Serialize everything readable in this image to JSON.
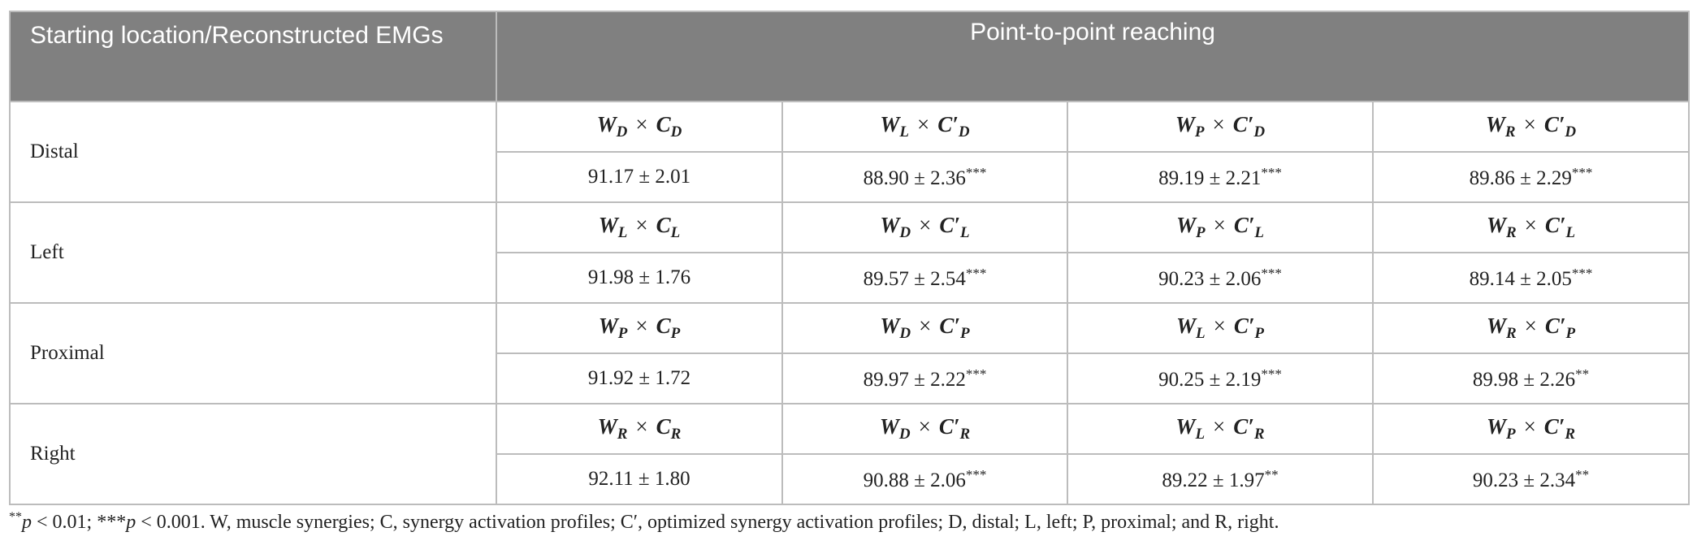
{
  "table": {
    "header": [
      "Starting location/Reconstructed EMGs",
      "Point-to-point reaching"
    ],
    "groups": [
      {
        "label": "Distal",
        "formulas": [
          {
            "w": "W",
            "w_sub": "D",
            "op": "×",
            "c": "C",
            "c_sub": "D"
          },
          {
            "w": "W",
            "w_sub": "L",
            "op": "×",
            "c": "C′",
            "c_sub": "D"
          },
          {
            "w": "W",
            "w_sub": "P",
            "op": "×",
            "c": "C′",
            "c_sub": "D"
          },
          {
            "w": "W",
            "w_sub": "R",
            "op": "×",
            "c": "C′",
            "c_sub": "D"
          }
        ],
        "values": [
          {
            "text": "91.17 ± 2.01",
            "sig": null
          },
          {
            "text": "88.90 ± 2.36",
            "sig": "***"
          },
          {
            "text": "89.19 ± 2.21",
            "sig": "***"
          },
          {
            "text": "89.86 ± 2.29",
            "sig": "***"
          }
        ]
      },
      {
        "label": "Left",
        "formulas": [
          {
            "w": "W",
            "w_sub": "L",
            "op": "×",
            "c": "C",
            "c_sub": "L"
          },
          {
            "w": "W",
            "w_sub": "D",
            "op": "×",
            "c": "C′",
            "c_sub": "L"
          },
          {
            "w": "W",
            "w_sub": "P",
            "op": "×",
            "c": "C′",
            "c_sub": "L"
          },
          {
            "w": "W",
            "w_sub": "R",
            "op": "×",
            "c": "C′",
            "c_sub": "L"
          }
        ],
        "values": [
          {
            "text": "91.98 ± 1.76",
            "sig": null
          },
          {
            "text": "89.57 ± 2.54",
            "sig": "***"
          },
          {
            "text": "90.23 ± 2.06",
            "sig": "***"
          },
          {
            "text": "89.14 ± 2.05",
            "sig": "***"
          }
        ]
      },
      {
        "label": "Proximal",
        "formulas": [
          {
            "w": "W",
            "w_sub": "P",
            "op": "×",
            "c": "C",
            "c_sub": "P"
          },
          {
            "w": "W",
            "w_sub": "D",
            "op": "×",
            "c": "C′",
            "c_sub": "P"
          },
          {
            "w": "W",
            "w_sub": "L",
            "op": "×",
            "c": "C′",
            "c_sub": "P"
          },
          {
            "w": "W",
            "w_sub": "R",
            "op": "×",
            "c": "C′",
            "c_sub": "P"
          }
        ],
        "values": [
          {
            "text": "91.92 ± 1.72",
            "sig": null
          },
          {
            "text": "89.97 ± 2.22",
            "sig": "***"
          },
          {
            "text": "90.25 ± 2.19",
            "sig": "***"
          },
          {
            "text": "89.98 ± 2.26",
            "sig": "**"
          }
        ]
      },
      {
        "label": "Right",
        "formulas": [
          {
            "w": "W",
            "w_sub": "R",
            "op": "×",
            "c": "C",
            "c_sub": "R"
          },
          {
            "w": "W",
            "w_sub": "D",
            "op": "×",
            "c": "C′",
            "c_sub": "R"
          },
          {
            "w": "W",
            "w_sub": "L",
            "op": "×",
            "c": "C′",
            "c_sub": "R"
          },
          {
            "w": "W",
            "w_sub": "P",
            "op": "×",
            "c": "C′",
            "c_sub": "R"
          }
        ],
        "values": [
          {
            "text": "92.11 ± 1.80",
            "sig": null
          },
          {
            "text": "90.88 ± 2.06",
            "sig": "***"
          },
          {
            "text": "89.22 ± 1.97",
            "sig": "**"
          },
          {
            "text": "90.23 ± 2.34",
            "sig": "**"
          }
        ]
      }
    ]
  },
  "footnote": [
    "**",
    "p",
    " < 0.01; ***",
    "p",
    " < 0.001. W, muscle synergies; C, synergy activation profiles; C′, optimized synergy activation profiles; D, distal; L, left; P, proximal; and R, right."
  ]
}
